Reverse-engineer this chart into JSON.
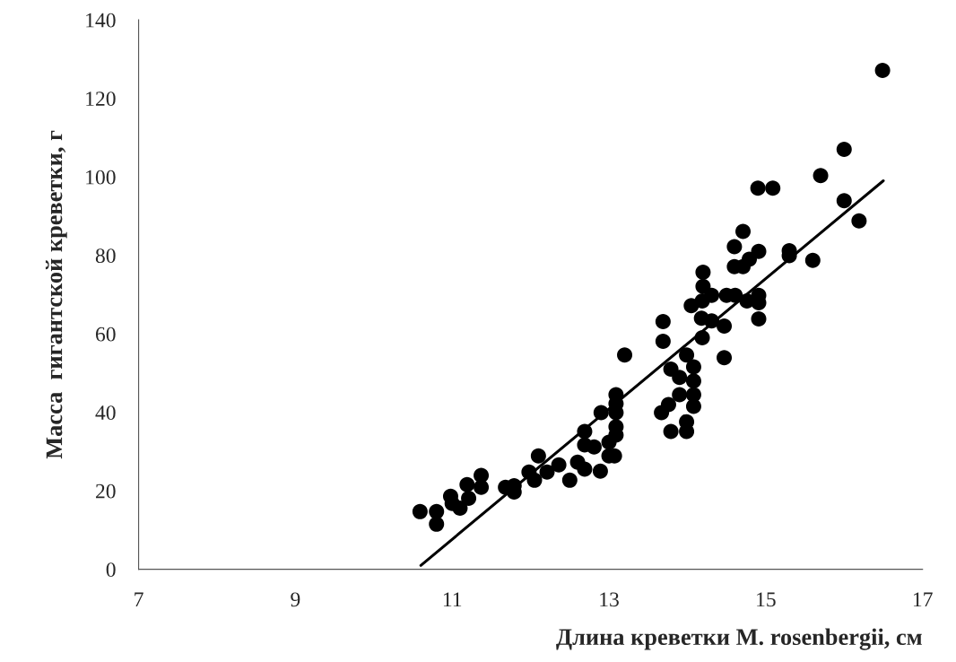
{
  "chart_data": {
    "type": "scatter",
    "xlabel": "Длина креветки M. rosenbergii, см",
    "ylabel": "Масса  гигантской креветки, г",
    "xlim": [
      7,
      17
    ],
    "xticks": [
      7,
      9,
      11,
      13,
      15,
      17
    ],
    "ylim": [
      0,
      140
    ],
    "yticks": [
      0,
      20,
      40,
      60,
      80,
      100,
      120,
      140
    ],
    "grid": false,
    "legend": false,
    "series": [
      {
        "color": "#000000",
        "marker": "circle",
        "x": [
          10.59,
          10.8,
          10.8,
          10.98,
          11.0,
          11.1,
          11.19,
          11.21,
          11.37,
          11.37,
          11.68,
          11.79,
          11.79,
          11.98,
          12.1,
          12.05,
          12.21,
          12.36,
          12.5,
          12.6,
          12.69,
          12.69,
          12.89,
          12.81,
          13.0,
          13.07,
          13.0,
          13.69,
          13.69,
          13.2,
          13.99,
          14.47,
          14.47,
          14.19,
          13.79,
          13.9,
          14.08,
          14.08,
          13.9,
          14.08,
          13.76,
          13.67,
          14.08,
          13.99,
          13.79,
          13.99,
          13.09,
          13.09,
          13.09,
          12.9,
          13.09,
          13.09,
          12.69,
          14.05,
          14.19,
          14.31,
          14.5,
          14.61,
          14.18,
          14.31,
          14.91,
          14.91,
          14.76,
          14.91,
          16.0,
          15.7,
          16.0,
          16.19,
          14.9,
          15.09,
          14.71,
          14.6,
          14.91,
          14.79,
          14.6,
          14.71,
          15.3,
          15.3,
          15.6,
          14.2,
          14.2,
          16.49
        ],
        "values": [
          14.7,
          14.7,
          11.5,
          18.6,
          16.8,
          15.6,
          21.6,
          18.1,
          23.9,
          20.9,
          20.9,
          19.7,
          21.3,
          24.8,
          28.9,
          22.7,
          24.8,
          26.6,
          22.7,
          27.3,
          25.5,
          31.7,
          25.0,
          31.2,
          28.9,
          28.9,
          32.4,
          63.1,
          58.1,
          54.6,
          54.6,
          53.9,
          62.0,
          59.0,
          51.0,
          48.9,
          51.6,
          48.0,
          44.5,
          44.5,
          42.0,
          39.9,
          41.5,
          37.6,
          35.1,
          35.1,
          44.5,
          42.2,
          39.9,
          39.9,
          36.3,
          34.2,
          35.1,
          67.2,
          68.4,
          69.8,
          69.8,
          69.8,
          64.0,
          63.3,
          69.8,
          67.9,
          68.4,
          63.8,
          107.0,
          100.3,
          93.9,
          88.8,
          97.1,
          97.1,
          86.1,
          82.2,
          81.0,
          79.0,
          77.1,
          77.1,
          81.2,
          79.9,
          78.7,
          75.7,
          72.1,
          127.1
        ]
      },
      {
        "type": "line",
        "color": "#000000",
        "line_style": "solid",
        "marker": "none",
        "x": [
          10.6,
          16.5
        ],
        "values": [
          1,
          99
        ]
      }
    ]
  }
}
